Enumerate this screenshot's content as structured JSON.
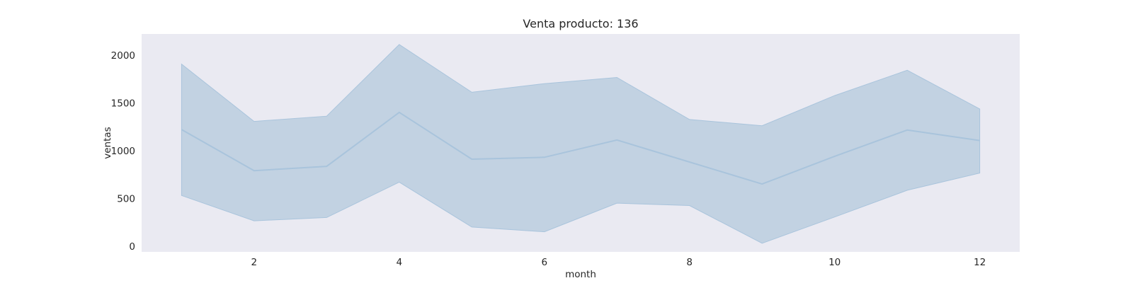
{
  "chart_data": {
    "type": "area",
    "title": "Venta producto: 136",
    "xlabel": "month",
    "ylabel": "ventas",
    "xlim": [
      0.45,
      12.55
    ],
    "ylim": [
      -50,
      2230
    ],
    "x_ticks": [
      2,
      4,
      6,
      8,
      10,
      12
    ],
    "y_ticks": [
      0,
      500,
      1000,
      1500,
      2000
    ],
    "grid": false,
    "legend": "none",
    "colors": {
      "background": "#eaeaf2",
      "line": "#a9c4dc",
      "band": "#c2d2e2"
    },
    "series": [
      {
        "x": [
          1,
          2,
          3,
          4,
          5,
          6,
          7,
          8,
          9,
          10,
          11,
          12
        ],
        "values": [
          1230,
          800,
          845,
          1410,
          920,
          940,
          1120,
          890,
          660,
          950,
          1225,
          1115
        ],
        "upper": [
          1915,
          1315,
          1370,
          2120,
          1620,
          1710,
          1775,
          1335,
          1270,
          1585,
          1850,
          1445
        ],
        "lower": [
          540,
          275,
          310,
          680,
          210,
          160,
          460,
          435,
          40,
          315,
          595,
          775
        ]
      }
    ]
  }
}
